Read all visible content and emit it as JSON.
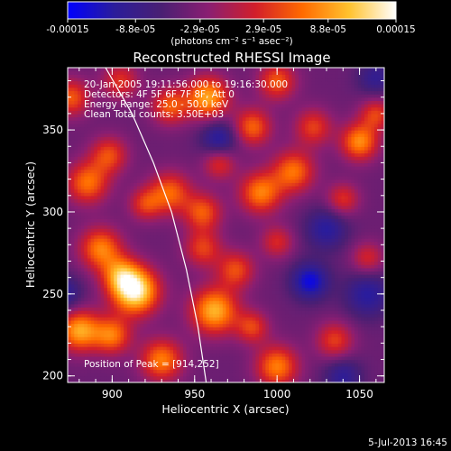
{
  "chart_data": {
    "type": "heatmap",
    "title": "Reconstructed RHESSI Image",
    "xlabel": "Heliocentric X (arcsec)",
    "ylabel": "Heliocentric Y (arcsec)",
    "xlim": [
      873,
      1065
    ],
    "ylim": [
      196,
      388
    ],
    "x_ticks": [
      {
        "value": 900,
        "label": "900"
      },
      {
        "value": 950,
        "label": "950"
      },
      {
        "value": 1000,
        "label": "1000"
      },
      {
        "value": 1050,
        "label": "1050"
      }
    ],
    "y_ticks": [
      {
        "value": 200,
        "label": "200"
      },
      {
        "value": 250,
        "label": "250"
      },
      {
        "value": 300,
        "label": "300"
      },
      {
        "value": 350,
        "label": "350"
      }
    ],
    "colorbar": {
      "range": [
        -0.00015,
        0.00015
      ],
      "ticks": [
        {
          "value": -0.00015,
          "label": "-0.00015"
        },
        {
          "value": -8.8e-05,
          "label": "-8.8e-05"
        },
        {
          "value": -2.9e-05,
          "label": "-2.9e-05"
        },
        {
          "value": 2.9e-05,
          "label": "2.9e-05"
        },
        {
          "value": 8.8e-05,
          "label": "8.8e-05"
        },
        {
          "value": 0.00015,
          "label": "0.00015"
        }
      ],
      "unit_label": "(photons cm⁻² s⁻¹ asec⁻²)",
      "colors": [
        "#0000ff",
        "#2b1d9a",
        "#4a1f73",
        "#8a1e72",
        "#d21e2a",
        "#ff6a00",
        "#ffc22e",
        "#ffffff"
      ]
    },
    "annotations": [
      "20-Jan-2005 19:11:56.000 to 19:16:30.000",
      "Detectors: 4F 5F 6F 7F 8F, Att 0",
      "Energy Range: 25.0 - 50.0 keV",
      "Clean     Total counts: 3.50E+03"
    ],
    "peak_text": "Position of Peak = [914,252]",
    "peak": {
      "x": 914,
      "y": 252
    },
    "limb_curve": [
      {
        "x": 896,
        "y": 388
      },
      {
        "x": 912,
        "y": 360
      },
      {
        "x": 925,
        "y": 330
      },
      {
        "x": 936,
        "y": 300
      },
      {
        "x": 945,
        "y": 265
      },
      {
        "x": 952,
        "y": 230
      },
      {
        "x": 957,
        "y": 196
      }
    ],
    "blobs": [
      {
        "x": 914,
        "y": 252,
        "a": 1.35,
        "s": 10
      },
      {
        "x": 905,
        "y": 262,
        "a": 0.7,
        "s": 8
      },
      {
        "x": 893,
        "y": 278,
        "a": 0.85,
        "s": 9
      },
      {
        "x": 880,
        "y": 228,
        "a": 1.0,
        "s": 9
      },
      {
        "x": 900,
        "y": 225,
        "a": 0.8,
        "s": 8
      },
      {
        "x": 930,
        "y": 210,
        "a": 0.85,
        "s": 9
      },
      {
        "x": 962,
        "y": 240,
        "a": 1.05,
        "s": 10
      },
      {
        "x": 985,
        "y": 230,
        "a": 0.6,
        "s": 7
      },
      {
        "x": 1000,
        "y": 206,
        "a": 0.85,
        "s": 9
      },
      {
        "x": 1035,
        "y": 222,
        "a": 0.6,
        "s": 8
      },
      {
        "x": 975,
        "y": 265,
        "a": 0.65,
        "s": 8
      },
      {
        "x": 955,
        "y": 278,
        "a": 0.6,
        "s": 8
      },
      {
        "x": 1000,
        "y": 282,
        "a": 0.5,
        "s": 7
      },
      {
        "x": 935,
        "y": 312,
        "a": 0.75,
        "s": 9
      },
      {
        "x": 955,
        "y": 300,
        "a": 0.7,
        "s": 8
      },
      {
        "x": 920,
        "y": 305,
        "a": 0.55,
        "s": 7
      },
      {
        "x": 885,
        "y": 318,
        "a": 0.8,
        "s": 9
      },
      {
        "x": 898,
        "y": 335,
        "a": 0.65,
        "s": 8
      },
      {
        "x": 990,
        "y": 312,
        "a": 0.85,
        "s": 9
      },
      {
        "x": 1010,
        "y": 325,
        "a": 0.8,
        "s": 9
      },
      {
        "x": 1040,
        "y": 308,
        "a": 0.55,
        "s": 7
      },
      {
        "x": 1050,
        "y": 343,
        "a": 0.9,
        "s": 8
      },
      {
        "x": 1060,
        "y": 360,
        "a": 0.6,
        "s": 7
      },
      {
        "x": 958,
        "y": 370,
        "a": 1.0,
        "s": 9
      },
      {
        "x": 935,
        "y": 365,
        "a": 0.7,
        "s": 8
      },
      {
        "x": 985,
        "y": 352,
        "a": 0.75,
        "s": 8
      },
      {
        "x": 1000,
        "y": 380,
        "a": 0.7,
        "s": 8
      },
      {
        "x": 1022,
        "y": 352,
        "a": 0.6,
        "s": 8
      },
      {
        "x": 905,
        "y": 380,
        "a": 0.55,
        "s": 8
      },
      {
        "x": 875,
        "y": 370,
        "a": 0.7,
        "s": 8
      },
      {
        "x": 965,
        "y": 330,
        "a": 0.55,
        "s": 7
      },
      {
        "x": 1055,
        "y": 272,
        "a": 0.5,
        "s": 7
      },
      {
        "x": 1055,
        "y": 250,
        "a": -0.5,
        "s": 10
      },
      {
        "x": 1020,
        "y": 258,
        "a": -0.7,
        "s": 8
      },
      {
        "x": 1030,
        "y": 290,
        "a": -0.5,
        "s": 9
      },
      {
        "x": 1040,
        "y": 200,
        "a": -0.45,
        "s": 8
      },
      {
        "x": 965,
        "y": 345,
        "a": -0.55,
        "s": 8
      },
      {
        "x": 870,
        "y": 250,
        "a": -0.5,
        "s": 8
      },
      {
        "x": 1060,
        "y": 382,
        "a": -0.4,
        "s": 8
      }
    ]
  },
  "footer": {
    "date": "5-Jul-2013 16:45"
  }
}
